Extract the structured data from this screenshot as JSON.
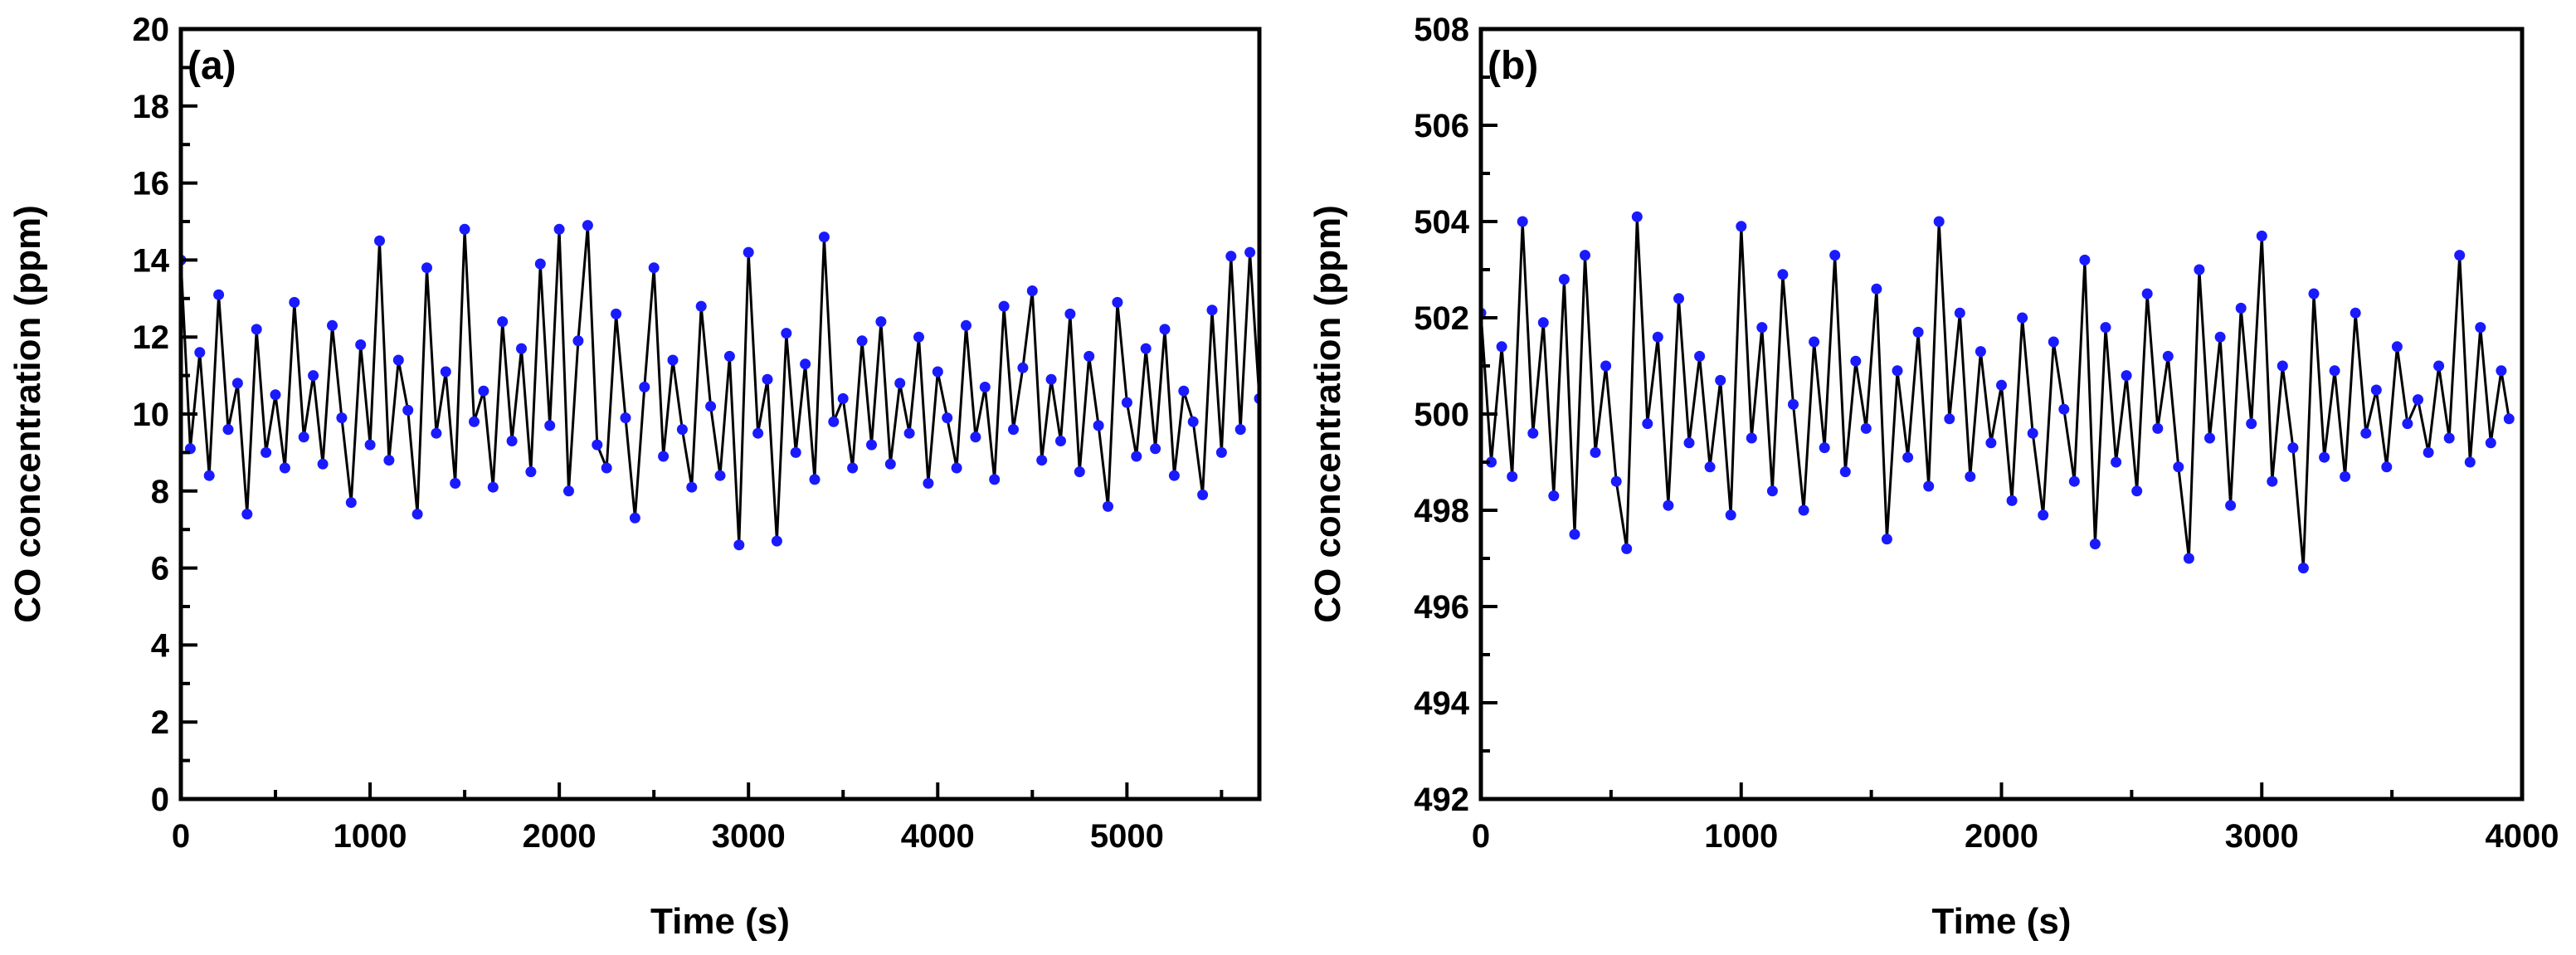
{
  "chart_data": [
    {
      "type": "line",
      "panel_label": "(a)",
      "xlabel": "Time (s)",
      "ylabel": "CO concentration (ppm)",
      "xlim": [
        0,
        5700
      ],
      "ylim": [
        0,
        20
      ],
      "xticks": [
        "0",
        "1000",
        "2000",
        "3000",
        "4000",
        "5000"
      ],
      "yticks": [
        "0",
        "2",
        "4",
        "6",
        "8",
        "10",
        "12",
        "14",
        "16",
        "18",
        "20"
      ],
      "grid": false,
      "markers": "filled circles",
      "line_color": "#000000",
      "marker_color": "#1a1aff",
      "series": [
        {
          "x": [
            0,
            50,
            100,
            150,
            200,
            250,
            300,
            350,
            400,
            450,
            500,
            550,
            600,
            650,
            700,
            750,
            800,
            850,
            900,
            950,
            1000,
            1050,
            1100,
            1150,
            1200,
            1250,
            1300,
            1350,
            1400,
            1450,
            1500,
            1550,
            1600,
            1650,
            1700,
            1750,
            1800,
            1850,
            1900,
            1950,
            2000,
            2050,
            2100,
            2150,
            2200,
            2250,
            2300,
            2350,
            2400,
            2450,
            2500,
            2550,
            2600,
            2650,
            2700,
            2750,
            2800,
            2850,
            2900,
            2950,
            3000,
            3050,
            3100,
            3150,
            3200,
            3250,
            3300,
            3350,
            3400,
            3450,
            3500,
            3550,
            3600,
            3650,
            3700,
            3750,
            3800,
            3850,
            3900,
            3950,
            4000,
            4050,
            4100,
            4150,
            4200,
            4250,
            4300,
            4350,
            4400,
            4450,
            4500,
            4550,
            4600,
            4650,
            4700,
            4750,
            4800,
            4850,
            4900,
            4950,
            5000,
            5050,
            5100,
            5150,
            5200,
            5250,
            5300,
            5350,
            5400,
            5450,
            5500,
            5550,
            5600,
            5650,
            5700
          ],
          "y": [
            14.0,
            9.1,
            11.6,
            8.4,
            13.1,
            9.6,
            10.8,
            7.4,
            12.2,
            9.0,
            10.5,
            8.6,
            12.9,
            9.4,
            11.0,
            8.7,
            12.3,
            9.9,
            7.7,
            11.8,
            9.2,
            14.5,
            8.8,
            11.4,
            10.1,
            7.4,
            13.8,
            9.5,
            11.1,
            8.2,
            14.8,
            9.8,
            10.6,
            8.1,
            12.4,
            9.3,
            11.7,
            8.5,
            13.9,
            9.7,
            14.8,
            8.0,
            11.9,
            14.9,
            9.2,
            8.6,
            12.6,
            9.9,
            7.3,
            10.7,
            13.8,
            8.9,
            11.4,
            9.6,
            8.1,
            12.8,
            10.2,
            8.4,
            11.5,
            6.6,
            14.2,
            9.5,
            10.9,
            6.7,
            12.1,
            9.0,
            11.3,
            8.3,
            14.6,
            9.8,
            10.4,
            8.6,
            11.9,
            9.2,
            12.4,
            8.7,
            10.8,
            9.5,
            12.0,
            8.2,
            11.1,
            9.9,
            8.6,
            12.3,
            9.4,
            10.7,
            8.3,
            12.8,
            9.6,
            11.2,
            13.2,
            8.8,
            10.9,
            9.3,
            12.6,
            8.5,
            11.5,
            9.7,
            7.6,
            12.9,
            10.3,
            8.9,
            11.7,
            9.1,
            12.2,
            8.4,
            10.6,
            9.8,
            7.9,
            12.7,
            9.0,
            14.1,
            9.6,
            14.2,
            10.4
          ]
        }
      ]
    },
    {
      "type": "line",
      "panel_label": "(b)",
      "xlabel": "Time (s)",
      "ylabel": "CO concentration (ppm)",
      "xlim": [
        0,
        4000
      ],
      "ylim": [
        492,
        508
      ],
      "xticks": [
        "0",
        "1000",
        "2000",
        "3000",
        "4000"
      ],
      "yticks": [
        "492",
        "494",
        "496",
        "498",
        "500",
        "502",
        "504",
        "506",
        "508"
      ],
      "grid": false,
      "markers": "filled circles",
      "line_color": "#000000",
      "marker_color": "#1a1aff",
      "series": [
        {
          "x": [
            0,
            40,
            80,
            120,
            160,
            200,
            240,
            280,
            320,
            360,
            400,
            440,
            480,
            520,
            560,
            600,
            640,
            680,
            720,
            760,
            800,
            840,
            880,
            920,
            960,
            1000,
            1040,
            1080,
            1120,
            1160,
            1200,
            1240,
            1280,
            1320,
            1360,
            1400,
            1440,
            1480,
            1520,
            1560,
            1600,
            1640,
            1680,
            1720,
            1760,
            1800,
            1840,
            1880,
            1920,
            1960,
            2000,
            2040,
            2080,
            2120,
            2160,
            2200,
            2240,
            2280,
            2320,
            2360,
            2400,
            2440,
            2480,
            2520,
            2560,
            2600,
            2640,
            2680,
            2720,
            2760,
            2800,
            2840,
            2880,
            2920,
            2960,
            3000,
            3040,
            3080,
            3120,
            3160,
            3200,
            3240,
            3280,
            3320,
            3360,
            3400,
            3440,
            3480,
            3520,
            3560,
            3600,
            3640,
            3680,
            3720,
            3760,
            3800,
            3840,
            3880,
            3920,
            3950
          ],
          "y": [
            502.1,
            499.0,
            501.4,
            498.7,
            504.0,
            499.6,
            501.9,
            498.3,
            502.8,
            497.5,
            503.3,
            499.2,
            501.0,
            498.6,
            497.2,
            504.1,
            499.8,
            501.6,
            498.1,
            502.4,
            499.4,
            501.2,
            498.9,
            500.7,
            497.9,
            503.9,
            499.5,
            501.8,
            498.4,
            502.9,
            500.2,
            498.0,
            501.5,
            499.3,
            503.3,
            498.8,
            501.1,
            499.7,
            502.6,
            497.4,
            500.9,
            499.1,
            501.7,
            498.5,
            504.0,
            499.9,
            502.1,
            498.7,
            501.3,
            499.4,
            500.6,
            498.2,
            502.0,
            499.6,
            497.9,
            501.5,
            500.1,
            498.6,
            503.2,
            497.3,
            501.8,
            499.0,
            500.8,
            498.4,
            502.5,
            499.7,
            501.2,
            498.9,
            497.0,
            503.0,
            499.5,
            501.6,
            498.1,
            502.2,
            499.8,
            503.7,
            498.6,
            501.0,
            499.3,
            496.8,
            502.5,
            499.1,
            500.9,
            498.7,
            502.1,
            499.6,
            500.5,
            498.9,
            501.4,
            499.8,
            500.3,
            499.2,
            501.0,
            499.5,
            503.3,
            499.0,
            501.8,
            499.4,
            500.9,
            499.9
          ]
        }
      ]
    }
  ]
}
